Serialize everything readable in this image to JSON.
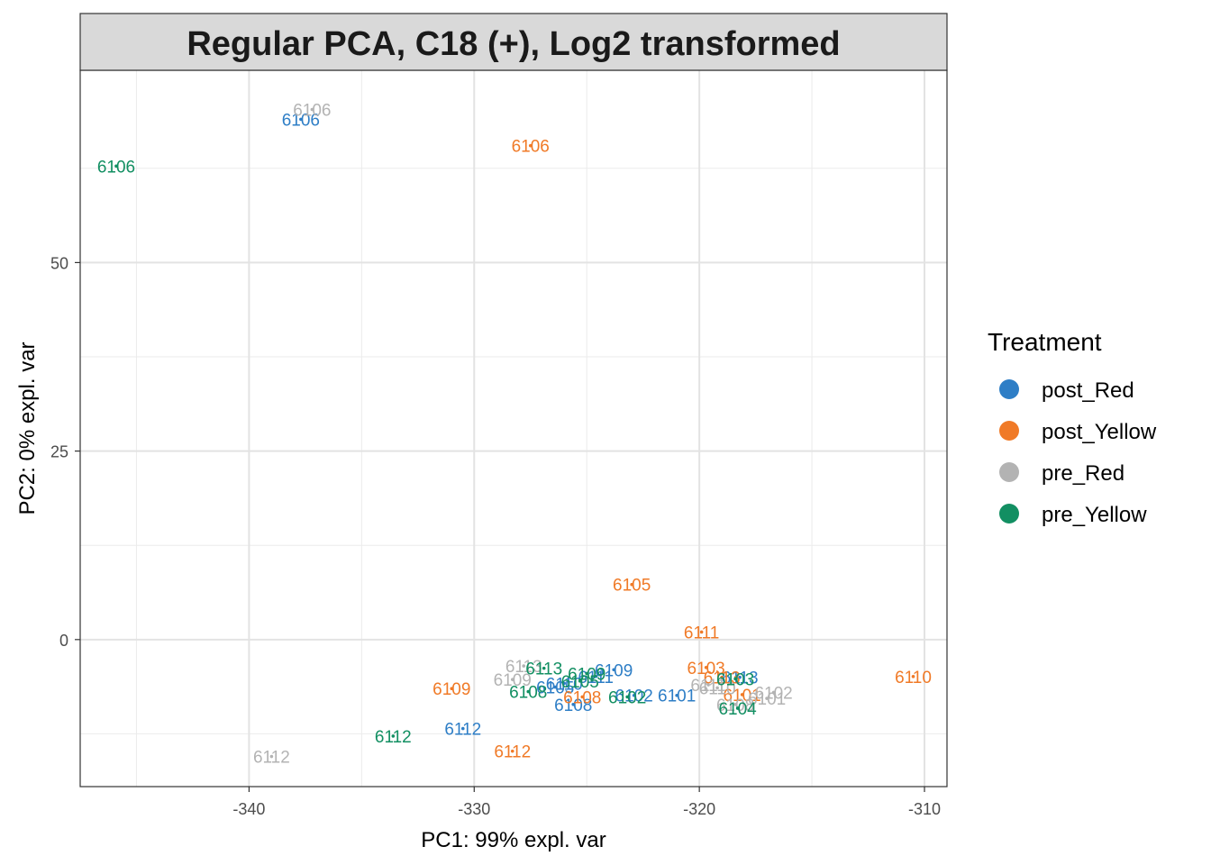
{
  "chart_data": {
    "type": "scatter",
    "title": "Regular PCA, C18 (+), Log2 transformed",
    "xlabel": "PC1: 99% expl. var",
    "ylabel": "PC2: 0% expl. var",
    "xlim": [
      -347.5,
      -309.0
    ],
    "ylim": [
      -19.5,
      75.5
    ],
    "x_ticks": [
      -340,
      -330,
      -320,
      -310
    ],
    "x_tick_labels": [
      "-340",
      "-330",
      "-320",
      "-310"
    ],
    "y_ticks": [
      0,
      25,
      50
    ],
    "y_tick_labels": [
      "0",
      "25",
      "50"
    ],
    "grid": true,
    "legend": {
      "title": "Treatment",
      "position": "right"
    },
    "series": [
      {
        "name": "post_Red",
        "color": "#2E7EC6",
        "points": [
          {
            "x": -337.7,
            "y": 69.0,
            "label": "6106"
          },
          {
            "x": -323.8,
            "y": -4.0,
            "label": "6109"
          },
          {
            "x": -324.6,
            "y": -4.9,
            "label": "6111"
          },
          {
            "x": -326.0,
            "y": -5.8,
            "label": "6110"
          },
          {
            "x": -326.4,
            "y": -6.3,
            "label": "6105"
          },
          {
            "x": -325.6,
            "y": -8.6,
            "label": "6108"
          },
          {
            "x": -322.9,
            "y": -7.4,
            "label": "6102"
          },
          {
            "x": -321.0,
            "y": -7.4,
            "label": "6101"
          },
          {
            "x": -318.2,
            "y": -5.0,
            "label": "6113"
          },
          {
            "x": -330.5,
            "y": -11.8,
            "label": "6112"
          }
        ]
      },
      {
        "name": "post_Yellow",
        "color": "#F07A27",
        "points": [
          {
            "x": -327.5,
            "y": 65.5,
            "label": "6106"
          },
          {
            "x": -323.0,
            "y": 7.3,
            "label": "6105"
          },
          {
            "x": -319.9,
            "y": 1.0,
            "label": "6111"
          },
          {
            "x": -319.7,
            "y": -3.7,
            "label": "6103"
          },
          {
            "x": -310.5,
            "y": -4.9,
            "label": "6110"
          },
          {
            "x": -319.0,
            "y": -5.0,
            "label": "6113"
          },
          {
            "x": -325.2,
            "y": -7.6,
            "label": "6108"
          },
          {
            "x": -318.1,
            "y": -7.3,
            "label": "6101"
          },
          {
            "x": -331.0,
            "y": -6.5,
            "label": "6109"
          },
          {
            "x": -328.3,
            "y": -14.8,
            "label": "6112"
          }
        ]
      },
      {
        "name": "pre_Red",
        "color": "#B3B3B3",
        "points": [
          {
            "x": -337.2,
            "y": 70.3,
            "label": "6106"
          },
          {
            "x": -327.8,
            "y": -3.5,
            "label": "6113"
          },
          {
            "x": -328.3,
            "y": -5.3,
            "label": "6109"
          },
          {
            "x": -319.6,
            "y": -6.0,
            "label": "6111"
          },
          {
            "x": -319.2,
            "y": -6.4,
            "label": "6110"
          },
          {
            "x": -316.7,
            "y": -7.0,
            "label": "6102"
          },
          {
            "x": -317.0,
            "y": -7.8,
            "label": "6101"
          },
          {
            "x": -318.4,
            "y": -8.6,
            "label": "6108"
          },
          {
            "x": -339.0,
            "y": -15.5,
            "label": "6112"
          }
        ]
      },
      {
        "name": "pre_Yellow",
        "color": "#128F62",
        "points": [
          {
            "x": -345.9,
            "y": 62.8,
            "label": "6106"
          },
          {
            "x": -326.9,
            "y": -3.8,
            "label": "6113"
          },
          {
            "x": -325.0,
            "y": -4.5,
            "label": "6109"
          },
          {
            "x": -327.6,
            "y": -6.9,
            "label": "6108"
          },
          {
            "x": -325.3,
            "y": -5.5,
            "label": "6105"
          },
          {
            "x": -318.4,
            "y": -5.2,
            "label": "6103"
          },
          {
            "x": -323.2,
            "y": -7.6,
            "label": "6102"
          },
          {
            "x": -318.3,
            "y": -9.1,
            "label": "6104"
          },
          {
            "x": -333.6,
            "y": -12.8,
            "label": "6112"
          }
        ]
      }
    ]
  }
}
